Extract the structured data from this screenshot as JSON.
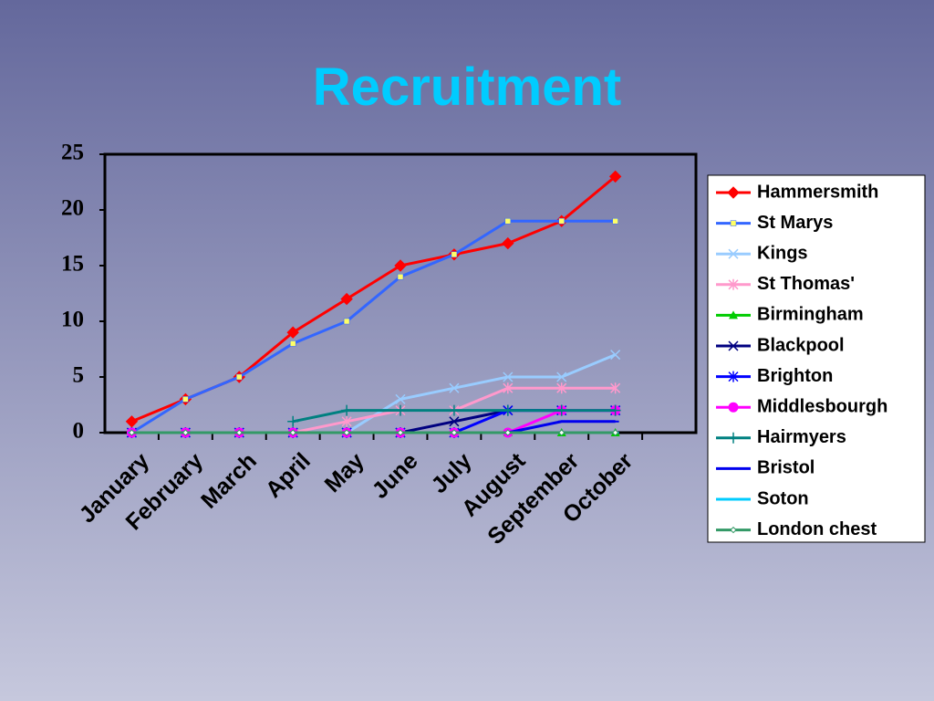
{
  "chart_data": {
    "type": "line",
    "title": "Recruitment",
    "categories": [
      "January",
      "February",
      "March",
      "April",
      "May",
      "June",
      "July",
      "August",
      "September",
      "October",
      null
    ],
    "ylim": [
      0,
      25
    ],
    "yticks": [
      0,
      5,
      10,
      15,
      20,
      25
    ],
    "grid": false,
    "legend": "right",
    "series": [
      {
        "name": "Hammersmith",
        "color": "#ff0000",
        "marker": "diamond",
        "values": [
          1,
          3,
          5,
          9,
          12,
          15,
          16,
          17,
          19,
          23,
          null
        ]
      },
      {
        "name": "St Marys",
        "color": "#3366ff",
        "marker": "square",
        "values": [
          0,
          3,
          5,
          8,
          10,
          14,
          16,
          19,
          19,
          19,
          null
        ]
      },
      {
        "name": "Kings",
        "color": "#99ccff",
        "marker": "x",
        "values": [
          0,
          0,
          0,
          0,
          0,
          3,
          4,
          5,
          5,
          7,
          null
        ]
      },
      {
        "name": "St Thomas'",
        "color": "#ff99cc",
        "marker": "star",
        "values": [
          0,
          0,
          0,
          0,
          1,
          2,
          2,
          4,
          4,
          4,
          null
        ]
      },
      {
        "name": "Birmingham",
        "color": "#00cc00",
        "marker": "triangle",
        "values": [
          0,
          0,
          0,
          0,
          0,
          0,
          0,
          0,
          0,
          0,
          null
        ]
      },
      {
        "name": "Blackpool",
        "color": "#000080",
        "marker": "x",
        "values": [
          0,
          0,
          0,
          0,
          0,
          0,
          1,
          2,
          2,
          2,
          null
        ]
      },
      {
        "name": "Brighton",
        "color": "#0000ff",
        "marker": "star",
        "values": [
          0,
          0,
          0,
          0,
          0,
          0,
          0,
          2,
          2,
          2,
          null
        ]
      },
      {
        "name": "Middlesbourgh",
        "color": "#ff00ff",
        "marker": "circle",
        "values": [
          0,
          0,
          0,
          0,
          0,
          0,
          0,
          0,
          2,
          2,
          null
        ]
      },
      {
        "name": "Hairmyers",
        "color": "#008080",
        "marker": "plus",
        "values": [
          null,
          null,
          null,
          1,
          2,
          2,
          2,
          2,
          2,
          2,
          null
        ]
      },
      {
        "name": "Bristol",
        "color": "#0000ee",
        "marker": "dash",
        "values": [
          0,
          0,
          0,
          0,
          0,
          0,
          0,
          0,
          1,
          1,
          null
        ]
      },
      {
        "name": "Soton",
        "color": "#00ccff",
        "marker": "dash",
        "values": [
          0,
          0,
          0,
          0,
          0,
          0,
          0,
          0,
          0,
          0,
          null
        ]
      },
      {
        "name": "London chest",
        "color": "#339966",
        "marker": "smalldiamond",
        "values": [
          0,
          0,
          0,
          0,
          0,
          0,
          0,
          0,
          0,
          0,
          null
        ]
      }
    ]
  }
}
